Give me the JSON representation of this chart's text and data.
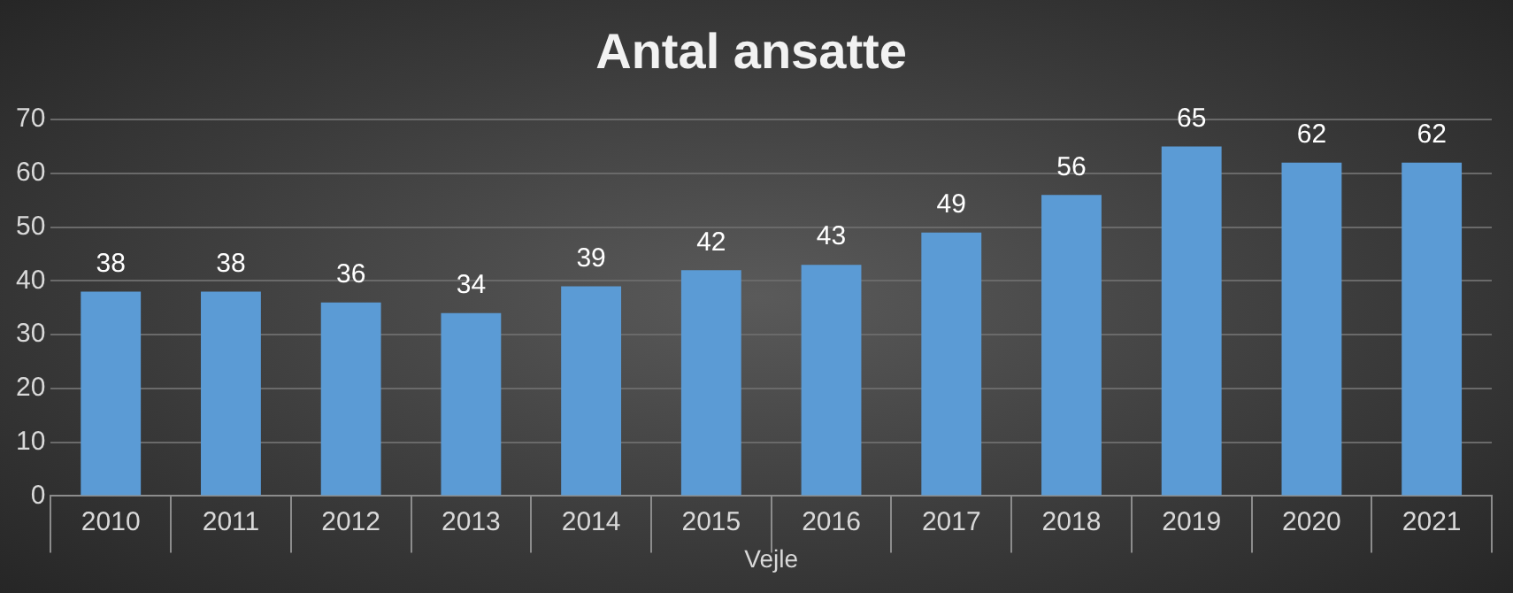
{
  "chart_data": {
    "type": "bar",
    "title": "Antal ansatte",
    "xlabel": "Vejle",
    "categories": [
      "2010",
      "2011",
      "2012",
      "2013",
      "2014",
      "2015",
      "2016",
      "2017",
      "2018",
      "2019",
      "2020",
      "2021"
    ],
    "values": [
      38,
      38,
      36,
      34,
      39,
      42,
      43,
      49,
      56,
      65,
      62,
      62
    ],
    "color": "#5b9bd5",
    "ylim": [
      0,
      70
    ],
    "yticks": [
      0,
      10,
      20,
      30,
      40,
      50,
      60,
      70
    ],
    "grid": "y",
    "data_labels": true,
    "legend": false
  }
}
